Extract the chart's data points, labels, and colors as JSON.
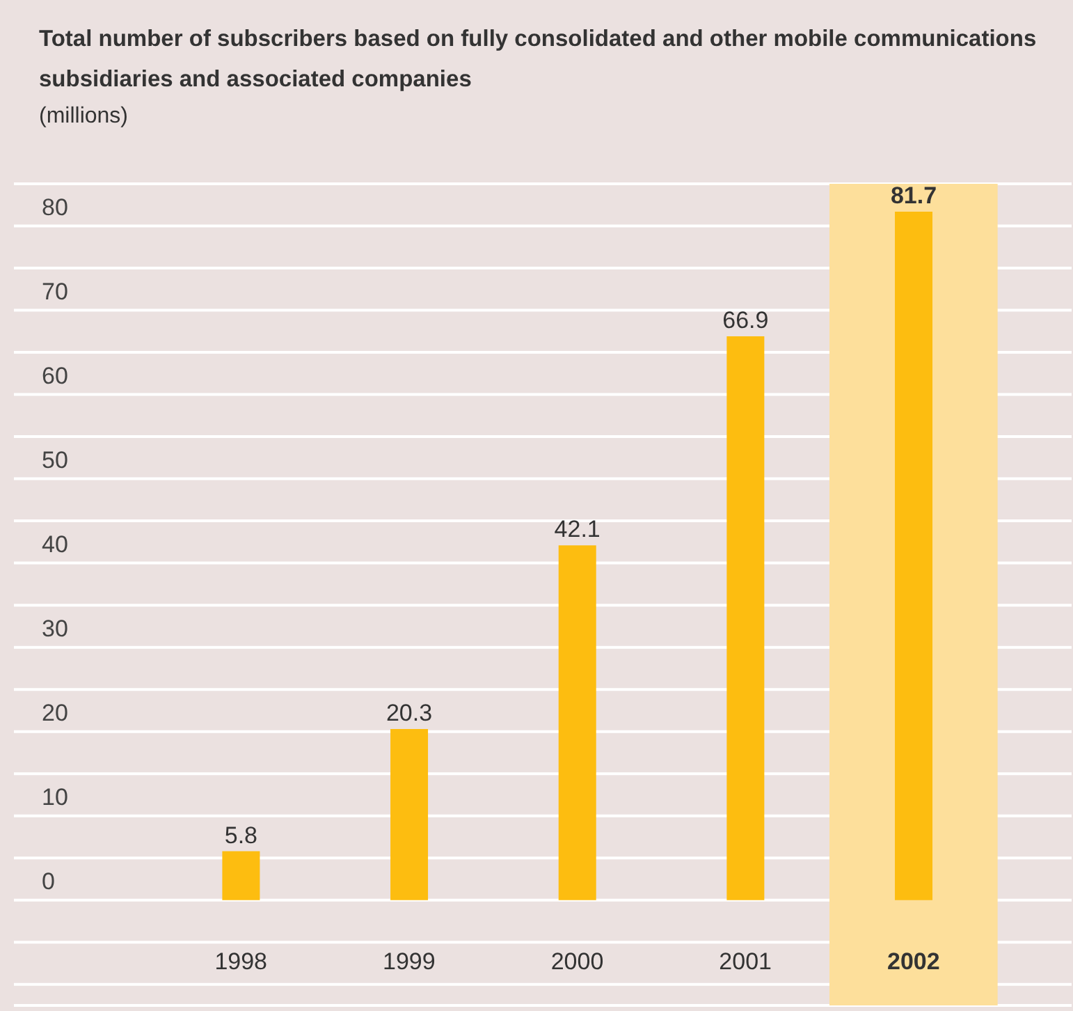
{
  "chart_data": {
    "type": "bar",
    "title": "Total number of subscribers based on fully consolidated and other mobile communications subsidiaries and associated companies",
    "subtitle": "(millions)",
    "categories": [
      "1998",
      "1999",
      "2000",
      "2001",
      "2002"
    ],
    "values": [
      5.8,
      20.3,
      42.1,
      66.9,
      81.7
    ],
    "color": "#fdbd10",
    "data_labels": true,
    "ylim": [
      -12.5,
      85
    ],
    "yticks": [
      {
        "value": -10,
        "label": null
      },
      {
        "value": -5,
        "label": null
      },
      0,
      {
        "value": 5,
        "label": null
      },
      10,
      {
        "value": 15,
        "label": null
      },
      20,
      {
        "value": 25,
        "label": null
      },
      30,
      {
        "value": 35,
        "label": null
      },
      40,
      {
        "value": 45,
        "label": null
      },
      50,
      {
        "value": 55,
        "label": null
      },
      60,
      {
        "value": 65,
        "label": null
      },
      70,
      {
        "value": 75,
        "label": null
      },
      80,
      {
        "value": 85,
        "label": null
      }
    ],
    "grid": "y",
    "bands": [
      {
        "axis": "x",
        "from": "2002",
        "to": "2002",
        "color": "#fddf9b"
      }
    ]
  }
}
